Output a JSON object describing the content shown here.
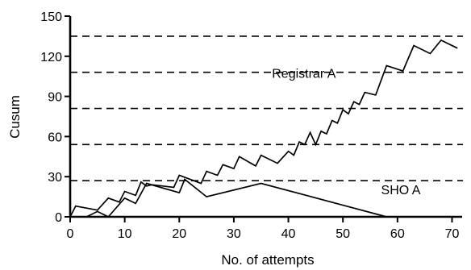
{
  "chart_data": {
    "type": "line",
    "xlabel": "No. of attempts",
    "ylabel": "Cusum",
    "xlim": [
      0,
      72
    ],
    "ylim": [
      0,
      150
    ],
    "xticks": [
      0,
      10,
      20,
      30,
      40,
      50,
      60,
      70
    ],
    "yticks": [
      0,
      30,
      60,
      90,
      120,
      150
    ],
    "x_tick_labels": [
      "0",
      "10",
      "20",
      "30",
      "40",
      "50",
      "60",
      "70"
    ],
    "y_tick_labels": [
      "0",
      "30",
      "60",
      "90",
      "120",
      "150"
    ],
    "reference_lines": [
      27,
      54,
      81,
      108,
      135
    ],
    "grid": false,
    "series": [
      {
        "name": "Registrar A",
        "color": "#000000",
        "points": [
          [
            0,
            0
          ],
          [
            1,
            8
          ],
          [
            5,
            5
          ],
          [
            7,
            14
          ],
          [
            9,
            11
          ],
          [
            10,
            19
          ],
          [
            12,
            16
          ],
          [
            13,
            26
          ],
          [
            14,
            23
          ],
          [
            15,
            24
          ],
          [
            19,
            22
          ],
          [
            20,
            31
          ],
          [
            24,
            25
          ],
          [
            25,
            34
          ],
          [
            27,
            31
          ],
          [
            28,
            39
          ],
          [
            30,
            36
          ],
          [
            31,
            45
          ],
          [
            34,
            38
          ],
          [
            35,
            46
          ],
          [
            38,
            40
          ],
          [
            40,
            49
          ],
          [
            41,
            46
          ],
          [
            42,
            56
          ],
          [
            43,
            54
          ],
          [
            44,
            63
          ],
          [
            45,
            54
          ],
          [
            46,
            64
          ],
          [
            47,
            62
          ],
          [
            48,
            72
          ],
          [
            49,
            70
          ],
          [
            50,
            80
          ],
          [
            51,
            77
          ],
          [
            52,
            86
          ],
          [
            53,
            84
          ],
          [
            54,
            93
          ],
          [
            56,
            91
          ],
          [
            58,
            113
          ],
          [
            61,
            109
          ],
          [
            63,
            128
          ],
          [
            66,
            122
          ],
          [
            68,
            132
          ],
          [
            71,
            126
          ]
        ]
      },
      {
        "name": "SHO A",
        "color": "#000000",
        "points": [
          [
            0,
            0
          ],
          [
            3,
            0
          ],
          [
            5,
            4
          ],
          [
            7,
            0
          ],
          [
            10,
            14
          ],
          [
            12,
            10
          ],
          [
            14,
            25
          ],
          [
            20,
            18
          ],
          [
            21,
            28
          ],
          [
            25,
            15
          ],
          [
            35,
            25
          ],
          [
            58,
            0
          ]
        ]
      }
    ],
    "annotations": [
      {
        "text": "Registrar A",
        "x": 37,
        "y": 104
      },
      {
        "text": "SHO A",
        "x": 57,
        "y": 17
      }
    ]
  }
}
